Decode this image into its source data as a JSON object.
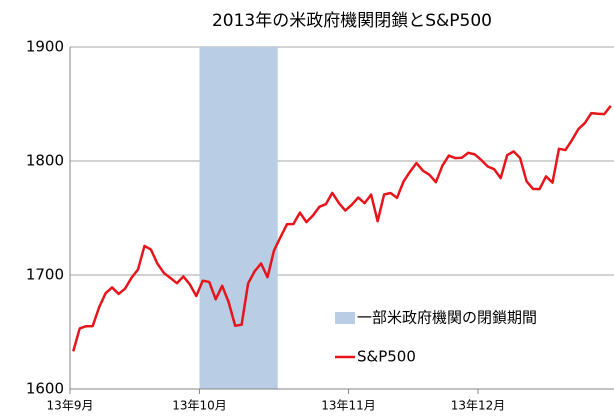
{
  "chart_data": {
    "type": "line",
    "title": "2013年の米政府機関閉鎖とS&P500",
    "categories": [
      "13年9月",
      null,
      null,
      null,
      null,
      null,
      null,
      null,
      null,
      null,
      null,
      null,
      null,
      null,
      null,
      null,
      null,
      null,
      null,
      null,
      "13年10月",
      null,
      null,
      null,
      null,
      null,
      null,
      null,
      null,
      null,
      null,
      null,
      null,
      null,
      null,
      null,
      null,
      null,
      null,
      null,
      null,
      null,
      null,
      "13年11月",
      null,
      null,
      null,
      null,
      null,
      null,
      null,
      null,
      null,
      null,
      null,
      null,
      null,
      null,
      null,
      null,
      null,
      null,
      null,
      "13年12月",
      null,
      null,
      null,
      null,
      null,
      null,
      null,
      null,
      null,
      null,
      null,
      null,
      null,
      null,
      null,
      null,
      null,
      null,
      null,
      null
    ],
    "series": [
      {
        "name": "一部米政府機関の閉鎖期間",
        "type": "bar",
        "color": "#b9cde5",
        "values": [
          null,
          null,
          null,
          null,
          null,
          null,
          null,
          null,
          null,
          null,
          null,
          null,
          null,
          null,
          null,
          null,
          null,
          null,
          null,
          null,
          1900,
          1900,
          1900,
          1900,
          1900,
          1900,
          1900,
          1900,
          1900,
          1900,
          1900,
          1900,
          null,
          null,
          null,
          null,
          null,
          null,
          null,
          null,
          null,
          null,
          null,
          null,
          null,
          null,
          null,
          null,
          null,
          null,
          null,
          null,
          null,
          null,
          null,
          null,
          null,
          null,
          null,
          null,
          null,
          null,
          null,
          null,
          null,
          null,
          null,
          null,
          null,
          null,
          null,
          null,
          null,
          null,
          null,
          null,
          null,
          null,
          null,
          null,
          null,
          null,
          null,
          null
        ]
      },
      {
        "name": "S&P500",
        "type": "line",
        "color": "#e8141b",
        "values": [
          1633,
          1653.1,
          1655.1,
          1655.2,
          1671.7,
          1684,
          1689.1,
          1683.4,
          1688,
          1697.6,
          1704.8,
          1725.5,
          1722.3,
          1709.9,
          1701.8,
          1697.4,
          1692.8,
          1698.7,
          1691.8,
          1681.6,
          1695,
          1693.9,
          1678.7,
          1690.5,
          1676.1,
          1655.5,
          1656.4,
          1692.6,
          1703.2,
          1710.1,
          1698.1,
          1721.5,
          1733.2,
          1744.5,
          1744.7,
          1754.7,
          1746.4,
          1752.1,
          1759.8,
          1762.1,
          1772,
          1763.3,
          1756.5,
          1761.6,
          1767.9,
          1763,
          1770.5,
          1747.2,
          1770.6,
          1771.9,
          1767.7,
          1782,
          1790.6,
          1798.2,
          1791.5,
          1787.9,
          1781.4,
          1795.9,
          1804.8,
          1802.5,
          1802.8,
          1807.2,
          1805.8,
          1800.9,
          1795.2,
          1792.8,
          1785,
          1805.1,
          1808.4,
          1802.6,
          1782.2,
          1775.5,
          1775.3,
          1786.5,
          1781,
          1810.7,
          1809.6,
          1818.3,
          1828,
          1833.3,
          1842,
          1841.4,
          1841.1,
          1848.4
        ]
      }
    ],
    "ylim": [
      1600,
      1900
    ],
    "yticks": [
      1600,
      1700,
      1800,
      1900
    ],
    "grid": true,
    "legend": "lower right"
  }
}
